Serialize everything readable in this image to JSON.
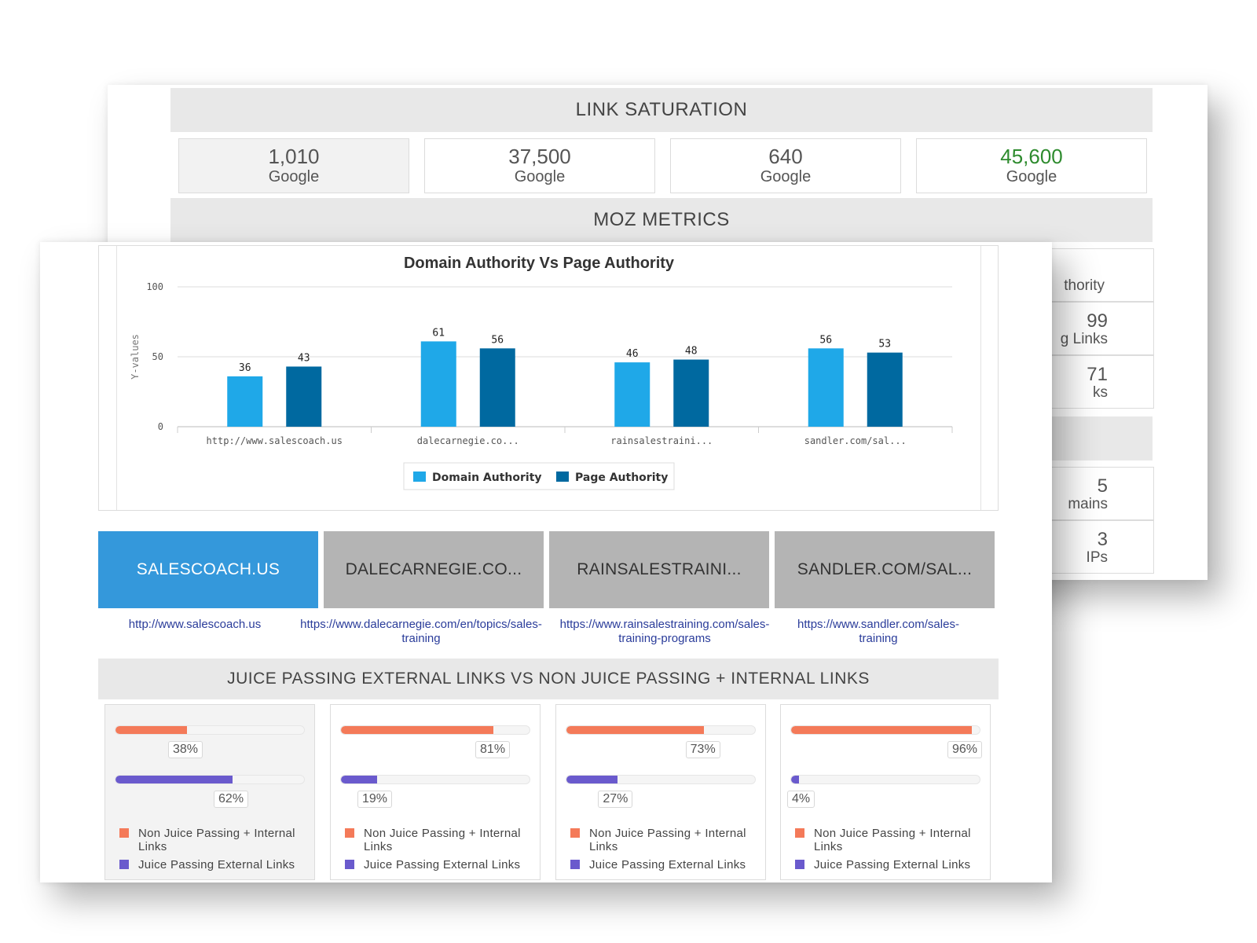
{
  "link_saturation": {
    "title": "LINK SATURATION",
    "stats": [
      {
        "value": "1,010",
        "label": "Google"
      },
      {
        "value": "37,500",
        "label": "Google"
      },
      {
        "value": "640",
        "label": "Google"
      },
      {
        "value": "45,600",
        "label": "Google"
      }
    ]
  },
  "moz_metrics": {
    "title": "MOZ METRICS",
    "cells": [
      {
        "line1": "",
        "line2": "thority"
      },
      {
        "line1": "99",
        "line2": "g Links"
      },
      {
        "line1": "71",
        "line2": "ks"
      },
      {
        "line1": "5",
        "line2": "mains"
      },
      {
        "line1": "3",
        "line2": "IPs"
      }
    ]
  },
  "colors": {
    "domain_authority": "#1fa8e8",
    "page_authority": "#0069a0",
    "orange": "#f47a59",
    "purple": "#6a5acd",
    "active_tab": "#3498db"
  },
  "chart_data": {
    "type": "bar",
    "title": "Domain Authority Vs Page Authority",
    "ylabel": "Y-values",
    "xlabel": "",
    "ylim": [
      0,
      100
    ],
    "yticks": [
      0,
      50,
      100
    ],
    "categories": [
      "http://www.salescoach.us",
      "dalecarnegie.co...",
      "rainsalestraini...",
      "sandler.com/sal..."
    ],
    "series": [
      {
        "name": "Domain Authority",
        "values": [
          36,
          61,
          46,
          56
        ]
      },
      {
        "name": "Page Authority",
        "values": [
          43,
          56,
          48,
          53
        ]
      }
    ],
    "legend": "bottom-center"
  },
  "tabs": [
    {
      "label": "SALESCOACH.US",
      "url": "http://www.salescoach.us"
    },
    {
      "label": "DALECARNEGIE.CO...",
      "url": "https://www.dalecarnegie.com/en/topics/sales-training"
    },
    {
      "label": "RAINSALESTRAINI...",
      "url": "https://www.rainsalestraining.com/sales-training-programs"
    },
    {
      "label": "SANDLER.COM/SAL...",
      "url": "https://www.sandler.com/sales-training"
    }
  ],
  "juice": {
    "title": "JUICE PASSING EXTERNAL LINKS VS NON JUICE PASSING + INTERNAL LINKS",
    "legend_non_juice": "Non Juice Passing + Internal Links",
    "legend_juice": "Juice Passing External Links",
    "cards": [
      {
        "non_juice_pct": 38,
        "non_juice_label": "38%",
        "juice_pct": 62,
        "juice_label": "62%"
      },
      {
        "non_juice_pct": 81,
        "non_juice_label": "81%",
        "juice_pct": 19,
        "juice_label": "19%"
      },
      {
        "non_juice_pct": 73,
        "non_juice_label": "73%",
        "juice_pct": 27,
        "juice_label": "27%"
      },
      {
        "non_juice_pct": 96,
        "non_juice_label": "96%",
        "juice_pct": 4,
        "juice_label": "4%"
      }
    ]
  }
}
